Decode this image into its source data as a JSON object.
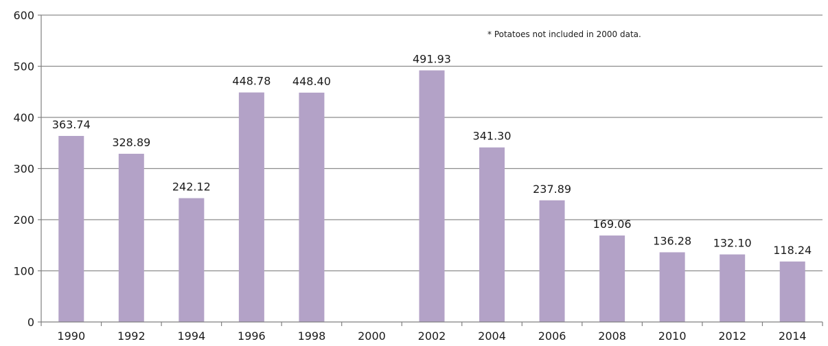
{
  "chart_data": {
    "type": "bar",
    "categories": [
      "1990",
      "1992",
      "1994",
      "1996",
      "1998",
      "2000",
      "2002",
      "2004",
      "2006",
      "2008",
      "2010",
      "2012",
      "2014"
    ],
    "values": [
      363.74,
      328.89,
      242.12,
      448.78,
      448.4,
      null,
      491.93,
      341.3,
      237.89,
      169.06,
      136.28,
      132.1,
      118.24
    ],
    "data_labels": [
      "363.74",
      "328.89",
      "242.12",
      "448.78",
      "448.40",
      "",
      "491.93",
      "341.30",
      "237.89",
      "169.06",
      "136.28",
      "132.10",
      "118.24"
    ],
    "title": "",
    "xlabel": "",
    "ylabel": "",
    "ylim": [
      0,
      600
    ],
    "yticks": [
      0,
      100,
      200,
      300,
      400,
      500,
      600
    ],
    "ytick_labels": [
      "0",
      "100",
      "200",
      "300",
      "400",
      "500",
      "600"
    ],
    "grid": true,
    "legend": "none",
    "annotation": "* Potatoes not included in 2000 data.",
    "colors": {
      "bar": "#b3a2c7",
      "grid": "#8c8c8c",
      "axis": "#7f7f7f",
      "text": "#1a1a1a"
    }
  }
}
